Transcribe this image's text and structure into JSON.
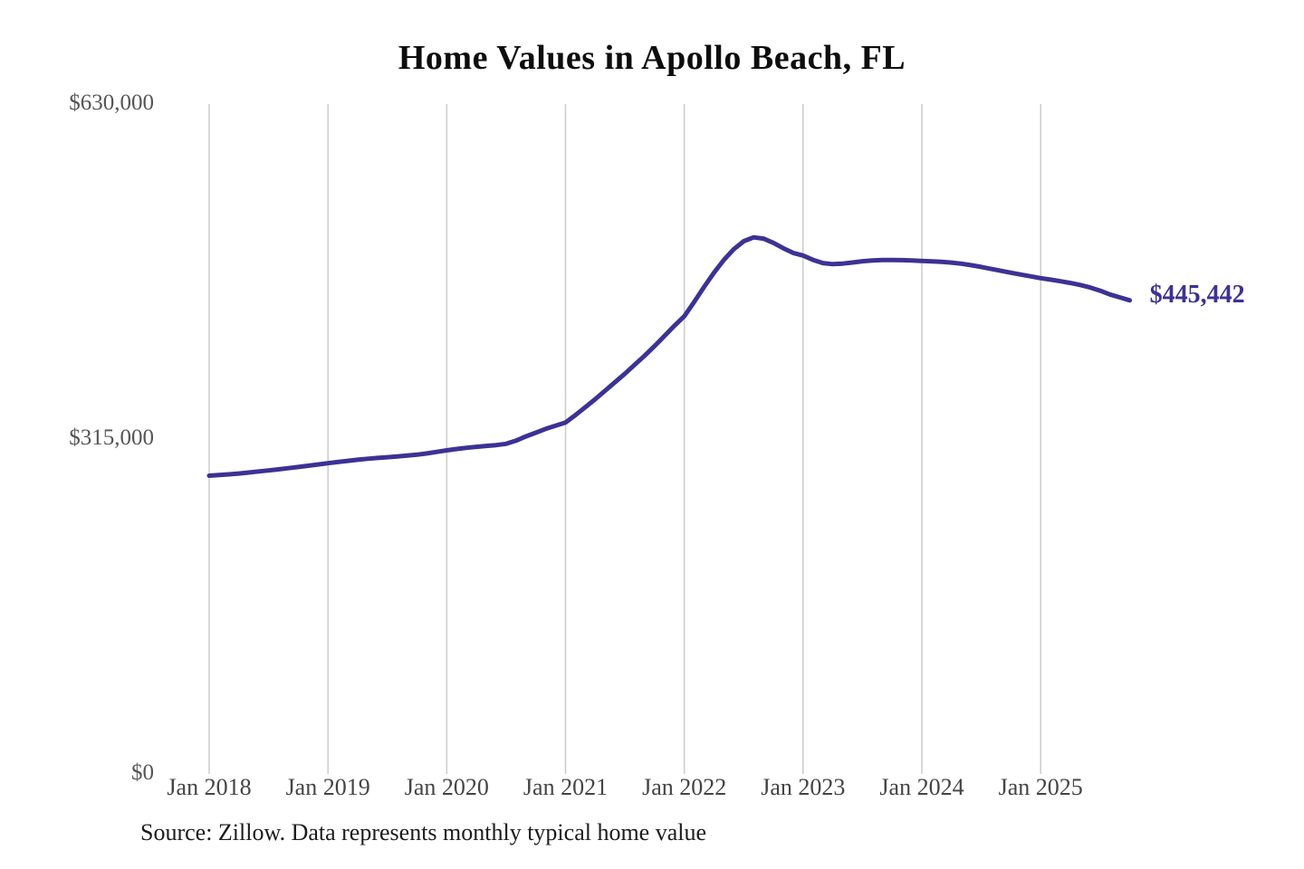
{
  "chart_data": {
    "type": "line",
    "title": "Home Values in Apollo Beach, FL",
    "source_note": "Source: Zillow. Data represents monthly typical home value",
    "series_name": "Monthly typical home value",
    "start_month": "Jan 2018",
    "end_month": "Oct 2025",
    "x_tick_labels": [
      "Jan 2018",
      "Jan 2019",
      "Jan 2020",
      "Jan 2021",
      "Jan 2022",
      "Jan 2023",
      "Jan 2024",
      "Jan 2025"
    ],
    "y_ticks": [
      {
        "value": 0,
        "label": "$0"
      },
      {
        "value": 315000,
        "label": "$315,000"
      },
      {
        "value": 630000,
        "label": "$630,000"
      }
    ],
    "ylim": [
      0,
      630000
    ],
    "grid": "vertical-only",
    "legend": "none",
    "end_label": "$445,442",
    "latest_value": 445442,
    "line_color": "#3b3295",
    "end_label_color": "#3b3295",
    "grid_color": "#cccccc",
    "values": [
      280500,
      281100,
      281800,
      282600,
      283500,
      284500,
      285500,
      286500,
      287600,
      288700,
      289900,
      291100,
      292300,
      293400,
      294500,
      295500,
      296400,
      297200,
      297900,
      298600,
      299400,
      300300,
      301500,
      302900,
      304400,
      305600,
      306700,
      307700,
      308500,
      309300,
      310500,
      313500,
      317500,
      321000,
      324500,
      327500,
      330500,
      337500,
      345000,
      352500,
      360500,
      368500,
      376500,
      385000,
      393500,
      402500,
      412000,
      421500,
      430500,
      444000,
      458000,
      471500,
      483500,
      493500,
      501000,
      504700,
      503500,
      499500,
      494500,
      490000,
      487600,
      483500,
      480500,
      479500,
      480000,
      481000,
      482200,
      483000,
      483300,
      483400,
      483200,
      482900,
      482500,
      482100,
      481600,
      480900,
      479900,
      478500,
      476800,
      475000,
      473200,
      471400,
      469700,
      468000,
      466300,
      464900,
      463400,
      461800,
      459900,
      457500,
      454500,
      451000,
      448200,
      445442
    ]
  }
}
